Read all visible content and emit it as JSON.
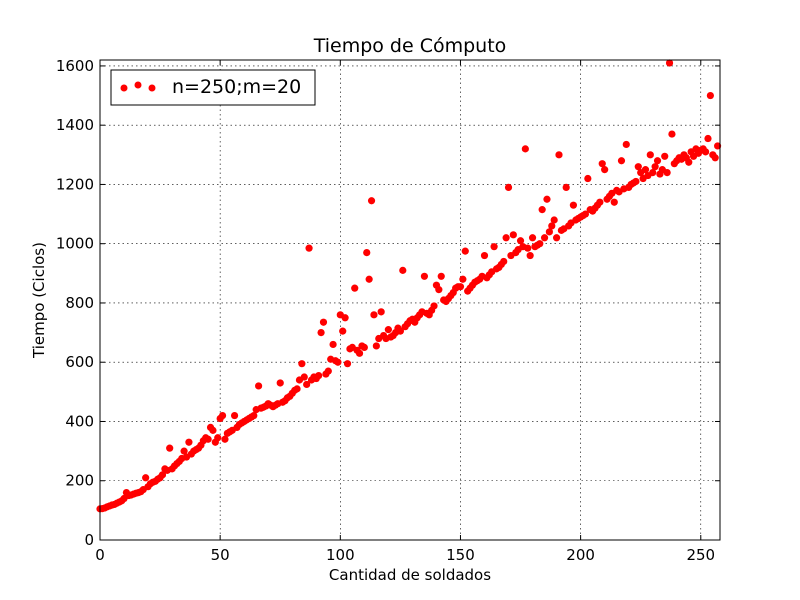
{
  "chart_data": {
    "type": "scatter",
    "title": "Tiempo de Cómputo",
    "xlabel": "Cantidad de soldados",
    "ylabel": "Tiempo (Ciclos)",
    "xlim": [
      0,
      258
    ],
    "ylim": [
      0,
      1620
    ],
    "xticks": [
      0,
      50,
      100,
      150,
      200,
      250
    ],
    "yticks": [
      0,
      200,
      400,
      600,
      800,
      1000,
      1200,
      1400,
      1600
    ],
    "grid": true,
    "legend_position": "top-left",
    "series": [
      {
        "name": "n=250;m=20",
        "color": "#ff0000",
        "marker": "circle",
        "points": [
          [
            0,
            105
          ],
          [
            1,
            106
          ],
          [
            2,
            108
          ],
          [
            3,
            112
          ],
          [
            4,
            115
          ],
          [
            5,
            118
          ],
          [
            6,
            120
          ],
          [
            7,
            124
          ],
          [
            8,
            128
          ],
          [
            9,
            132
          ],
          [
            10,
            140
          ],
          [
            11,
            160
          ],
          [
            12,
            150
          ],
          [
            13,
            152
          ],
          [
            14,
            155
          ],
          [
            15,
            158
          ],
          [
            16,
            160
          ],
          [
            17,
            163
          ],
          [
            18,
            170
          ],
          [
            19,
            210
          ],
          [
            20,
            180
          ],
          [
            21,
            190
          ],
          [
            22,
            195
          ],
          [
            23,
            198
          ],
          [
            24,
            205
          ],
          [
            25,
            210
          ],
          [
            26,
            220
          ],
          [
            27,
            240
          ],
          [
            28,
            235
          ],
          [
            29,
            310
          ],
          [
            30,
            240
          ],
          [
            31,
            250
          ],
          [
            32,
            258
          ],
          [
            33,
            265
          ],
          [
            34,
            275
          ],
          [
            35,
            300
          ],
          [
            36,
            280
          ],
          [
            37,
            330
          ],
          [
            38,
            290
          ],
          [
            39,
            300
          ],
          [
            40,
            305
          ],
          [
            41,
            310
          ],
          [
            42,
            320
          ],
          [
            43,
            335
          ],
          [
            44,
            345
          ],
          [
            45,
            340
          ],
          [
            46,
            380
          ],
          [
            47,
            370
          ],
          [
            48,
            330
          ],
          [
            49,
            345
          ],
          [
            50,
            410
          ],
          [
            51,
            420
          ],
          [
            52,
            340
          ],
          [
            53,
            360
          ],
          [
            54,
            365
          ],
          [
            55,
            370
          ],
          [
            56,
            420
          ],
          [
            57,
            380
          ],
          [
            58,
            390
          ],
          [
            59,
            395
          ],
          [
            60,
            400
          ],
          [
            61,
            405
          ],
          [
            62,
            410
          ],
          [
            63,
            415
          ],
          [
            64,
            420
          ],
          [
            65,
            440
          ],
          [
            66,
            520
          ],
          [
            67,
            445
          ],
          [
            68,
            448
          ],
          [
            69,
            452
          ],
          [
            70,
            460
          ],
          [
            71,
            455
          ],
          [
            72,
            450
          ],
          [
            73,
            455
          ],
          [
            74,
            460
          ],
          [
            75,
            530
          ],
          [
            76,
            465
          ],
          [
            77,
            470
          ],
          [
            78,
            480
          ],
          [
            79,
            485
          ],
          [
            80,
            495
          ],
          [
            81,
            505
          ],
          [
            82,
            510
          ],
          [
            83,
            540
          ],
          [
            84,
            595
          ],
          [
            85,
            550
          ],
          [
            86,
            525
          ],
          [
            87,
            985
          ],
          [
            88,
            540
          ],
          [
            89,
            550
          ],
          [
            90,
            545
          ],
          [
            91,
            555
          ],
          [
            92,
            700
          ],
          [
            93,
            735
          ],
          [
            94,
            560
          ],
          [
            95,
            570
          ],
          [
            96,
            610
          ],
          [
            97,
            660
          ],
          [
            98,
            605
          ],
          [
            99,
            600
          ],
          [
            100,
            760
          ],
          [
            101,
            705
          ],
          [
            102,
            750
          ],
          [
            103,
            595
          ],
          [
            104,
            645
          ],
          [
            105,
            650
          ],
          [
            106,
            850
          ],
          [
            107,
            640
          ],
          [
            108,
            630
          ],
          [
            109,
            655
          ],
          [
            110,
            650
          ],
          [
            111,
            970
          ],
          [
            112,
            880
          ],
          [
            113,
            1145
          ],
          [
            114,
            760
          ],
          [
            115,
            655
          ],
          [
            116,
            680
          ],
          [
            117,
            770
          ],
          [
            118,
            690
          ],
          [
            119,
            680
          ],
          [
            120,
            710
          ],
          [
            121,
            685
          ],
          [
            122,
            690
          ],
          [
            123,
            700
          ],
          [
            124,
            715
          ],
          [
            125,
            705
          ],
          [
            126,
            910
          ],
          [
            127,
            720
          ],
          [
            128,
            730
          ],
          [
            129,
            740
          ],
          [
            130,
            745
          ],
          [
            131,
            735
          ],
          [
            132,
            750
          ],
          [
            133,
            760
          ],
          [
            134,
            770
          ],
          [
            135,
            890
          ],
          [
            136,
            765
          ],
          [
            137,
            760
          ],
          [
            138,
            775
          ],
          [
            139,
            790
          ],
          [
            140,
            860
          ],
          [
            141,
            845
          ],
          [
            142,
            890
          ],
          [
            143,
            810
          ],
          [
            144,
            805
          ],
          [
            145,
            815
          ],
          [
            146,
            825
          ],
          [
            147,
            835
          ],
          [
            148,
            850
          ],
          [
            149,
            855
          ],
          [
            150,
            855
          ],
          [
            151,
            880
          ],
          [
            152,
            975
          ],
          [
            153,
            840
          ],
          [
            154,
            850
          ],
          [
            155,
            860
          ],
          [
            156,
            870
          ],
          [
            157,
            875
          ],
          [
            158,
            880
          ],
          [
            159,
            890
          ],
          [
            160,
            960
          ],
          [
            161,
            885
          ],
          [
            162,
            895
          ],
          [
            163,
            905
          ],
          [
            164,
            990
          ],
          [
            165,
            915
          ],
          [
            166,
            920
          ],
          [
            167,
            930
          ],
          [
            168,
            940
          ],
          [
            169,
            1020
          ],
          [
            170,
            1190
          ],
          [
            171,
            960
          ],
          [
            172,
            1030
          ],
          [
            173,
            970
          ],
          [
            174,
            980
          ],
          [
            175,
            1010
          ],
          [
            176,
            990
          ],
          [
            177,
            1320
          ],
          [
            178,
            985
          ],
          [
            179,
            960
          ],
          [
            180,
            1020
          ],
          [
            181,
            990
          ],
          [
            182,
            995
          ],
          [
            183,
            1000
          ],
          [
            184,
            1115
          ],
          [
            185,
            1020
          ],
          [
            186,
            1150
          ],
          [
            187,
            1040
          ],
          [
            188,
            1060
          ],
          [
            189,
            1080
          ],
          [
            190,
            1020
          ],
          [
            191,
            1300
          ],
          [
            192,
            1045
          ],
          [
            193,
            1050
          ],
          [
            194,
            1190
          ],
          [
            195,
            1060
          ],
          [
            196,
            1070
          ],
          [
            197,
            1130
          ],
          [
            198,
            1080
          ],
          [
            199,
            1085
          ],
          [
            200,
            1090
          ],
          [
            201,
            1095
          ],
          [
            202,
            1100
          ],
          [
            203,
            1220
          ],
          [
            204,
            1115
          ],
          [
            205,
            1110
          ],
          [
            206,
            1120
          ],
          [
            207,
            1130
          ],
          [
            208,
            1140
          ],
          [
            209,
            1270
          ],
          [
            210,
            1250
          ],
          [
            211,
            1150
          ],
          [
            212,
            1160
          ],
          [
            213,
            1170
          ],
          [
            214,
            1140
          ],
          [
            215,
            1180
          ],
          [
            216,
            1175
          ],
          [
            217,
            1280
          ],
          [
            218,
            1185
          ],
          [
            219,
            1335
          ],
          [
            220,
            1190
          ],
          [
            221,
            1200
          ],
          [
            222,
            1205
          ],
          [
            223,
            1210
          ],
          [
            224,
            1260
          ],
          [
            225,
            1240
          ],
          [
            226,
            1220
          ],
          [
            227,
            1250
          ],
          [
            228,
            1230
          ],
          [
            229,
            1300
          ],
          [
            230,
            1240
          ],
          [
            231,
            1260
          ],
          [
            232,
            1280
          ],
          [
            233,
            1235
          ],
          [
            234,
            1250
          ],
          [
            235,
            1295
          ],
          [
            236,
            1240
          ],
          [
            237,
            1610
          ],
          [
            238,
            1370
          ],
          [
            239,
            1270
          ],
          [
            240,
            1280
          ],
          [
            241,
            1290
          ],
          [
            242,
            1285
          ],
          [
            243,
            1300
          ],
          [
            244,
            1290
          ],
          [
            245,
            1275
          ],
          [
            246,
            1310
          ],
          [
            247,
            1295
          ],
          [
            248,
            1320
          ],
          [
            249,
            1305
          ],
          [
            250,
            1315
          ],
          [
            251,
            1320
          ],
          [
            252,
            1310
          ],
          [
            253,
            1355
          ],
          [
            254,
            1500
          ],
          [
            255,
            1300
          ],
          [
            256,
            1290
          ],
          [
            257,
            1330
          ]
        ]
      }
    ]
  }
}
